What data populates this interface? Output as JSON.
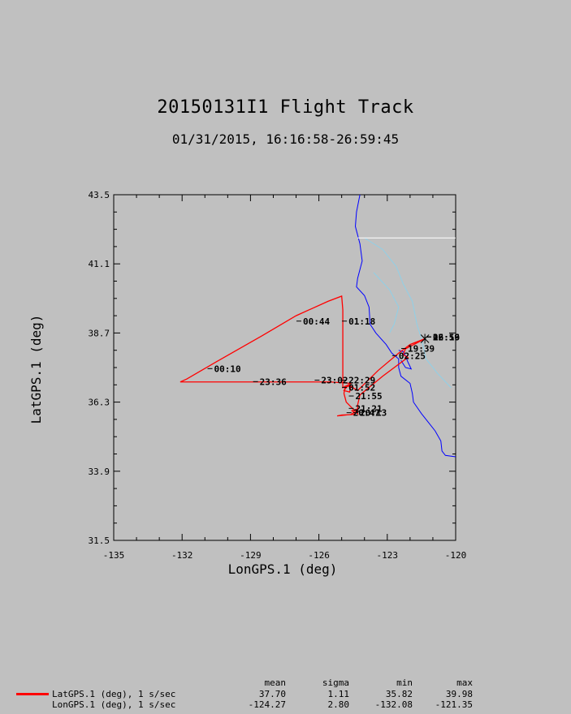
{
  "chart_data": {
    "type": "line",
    "title": "20150131I1 Flight Track",
    "subtitle": "01/31/2015, 16:16:58-26:59:45",
    "xlabel": "LonGPS.1 (deg)",
    "ylabel": "LatGPS.1 (deg)",
    "xlim": [
      -135,
      -120
    ],
    "ylim": [
      31.5,
      43.5
    ],
    "x_ticks": [
      "-135",
      "-132",
      "-129",
      "-126",
      "-123",
      "-120"
    ],
    "y_ticks": [
      "31.5",
      "33.9",
      "36.3",
      "38.7",
      "41.1",
      "43.5"
    ],
    "grid": false,
    "series": [
      {
        "name": "LatGPS.1 (deg), 1 s/sec",
        "color": "#ff0000",
        "points": [
          [
            -121.35,
            38.5
          ],
          [
            -122.2,
            38.15
          ],
          [
            -122.3,
            37.95
          ],
          [
            -122.1,
            37.85
          ],
          [
            -123.2,
            37.2
          ],
          [
            -124.2,
            36.55
          ],
          [
            -124.3,
            36.2
          ],
          [
            -124.3,
            35.95
          ],
          [
            -124.5,
            35.87
          ],
          [
            -125.0,
            35.85
          ],
          [
            -125.2,
            35.82
          ],
          [
            -124.6,
            35.87
          ],
          [
            -124.45,
            35.95
          ],
          [
            -124.55,
            36.0
          ],
          [
            -124.35,
            36.05
          ],
          [
            -124.3,
            35.9
          ],
          [
            -124.8,
            36.3
          ],
          [
            -124.9,
            36.6
          ],
          [
            -124.85,
            36.85
          ],
          [
            -124.6,
            36.85
          ],
          [
            -124.65,
            36.65
          ],
          [
            -124.9,
            36.7
          ],
          [
            -124.7,
            36.9
          ],
          [
            -124.6,
            36.95
          ],
          [
            -125.5,
            37.0
          ],
          [
            -127.0,
            37.0
          ],
          [
            -129.5,
            37.0
          ],
          [
            -132.08,
            37.0
          ],
          [
            -131.8,
            37.1
          ],
          [
            -130.5,
            37.7
          ],
          [
            -128.5,
            38.6
          ],
          [
            -127.0,
            39.3
          ],
          [
            -125.6,
            39.8
          ],
          [
            -125.0,
            39.98
          ],
          [
            -124.95,
            39.5
          ],
          [
            -124.95,
            38.5
          ],
          [
            -124.95,
            37.5
          ],
          [
            -124.95,
            36.8
          ],
          [
            -124.7,
            36.9
          ],
          [
            -124.3,
            36.7
          ],
          [
            -123.4,
            37.4
          ],
          [
            -122.5,
            38.0
          ],
          [
            -122.0,
            38.3
          ],
          [
            -121.35,
            38.5
          ]
        ]
      }
    ],
    "time_labels": [
      {
        "text": "19:39",
        "lon": -122.1,
        "lat": 38.05
      },
      {
        "text": "02:25",
        "lon": -122.5,
        "lat": 37.8
      },
      {
        "text": "00:44",
        "lon": -126.7,
        "lat": 39.0
      },
      {
        "text": "01:18",
        "lon": -124.7,
        "lat": 39.0
      },
      {
        "text": "00:10",
        "lon": -130.6,
        "lat": 37.35
      },
      {
        "text": "23:36",
        "lon": -128.6,
        "lat": 36.9
      },
      {
        "text": "23:02",
        "lon": -125.9,
        "lat": 36.95
      },
      {
        "text": "22:29",
        "lon": -124.7,
        "lat": 36.95
      },
      {
        "text": "01:52",
        "lon": -124.7,
        "lat": 36.7
      },
      {
        "text": "21:55",
        "lon": -124.4,
        "lat": 36.4
      },
      {
        "text": "21:21",
        "lon": -124.4,
        "lat": 35.97
      },
      {
        "text": "20:47",
        "lon": -124.5,
        "lat": 35.82
      },
      {
        "text": "20:13",
        "lon": -124.2,
        "lat": 35.82
      },
      {
        "text": "26:59",
        "lon": -121.0,
        "lat": 38.45
      },
      {
        "text": "16:16",
        "lon": -121.0,
        "lat": 38.45
      },
      {
        "text": "02:59",
        "lon": -121.0,
        "lat": 38.45
      }
    ]
  },
  "stats": {
    "headers": [
      "mean",
      "sigma",
      "min",
      "max"
    ],
    "rows": [
      {
        "label": "LatGPS.1 (deg), 1 s/sec",
        "color": "#ff0000",
        "values": [
          "37.70",
          "1.11",
          "35.82",
          "39.98"
        ]
      },
      {
        "label": "LonGPS.1 (deg), 1 s/sec",
        "color": "",
        "values": [
          "-124.27",
          "2.80",
          "-132.08",
          "-121.35"
        ]
      }
    ]
  }
}
